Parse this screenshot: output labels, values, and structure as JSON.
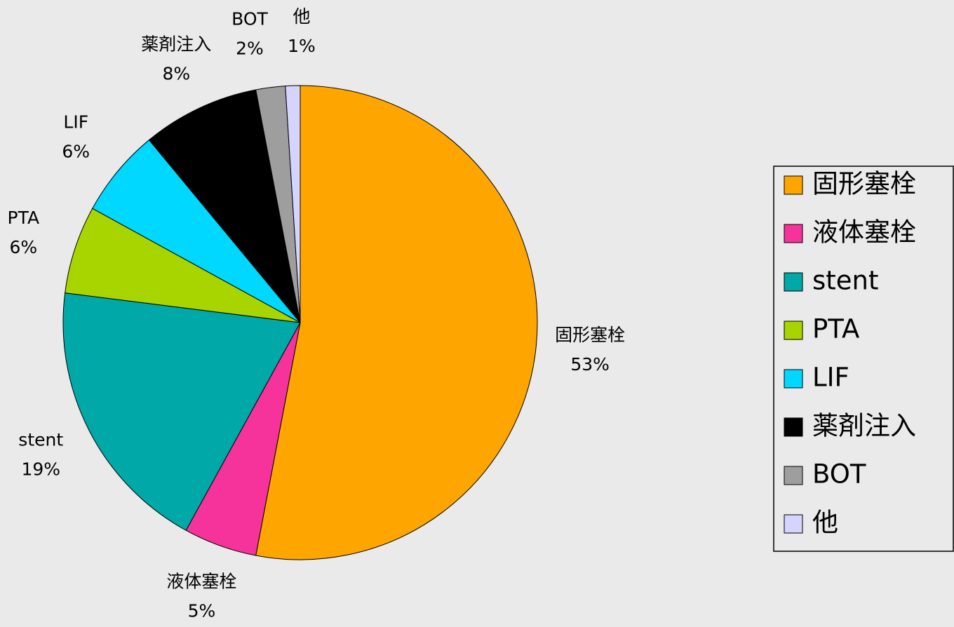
{
  "chart_data": {
    "type": "pie",
    "categories": [
      "固形塞栓",
      "液体塞栓",
      "stent",
      "PTA",
      "LIF",
      "薬剤注入",
      "BOT",
      "他"
    ],
    "values": [
      53,
      5,
      19,
      6,
      6,
      8,
      2,
      1
    ],
    "value_labels": [
      "53%",
      "5%",
      "19%",
      "6%",
      "6%",
      "8%",
      "2%",
      "1%"
    ],
    "colors": [
      "#ffa500",
      "#f5339b",
      "#00a8a8",
      "#a8d400",
      "#00d8ff",
      "#000000",
      "#9e9e9e",
      "#d4d4ff"
    ],
    "legend": "right"
  }
}
